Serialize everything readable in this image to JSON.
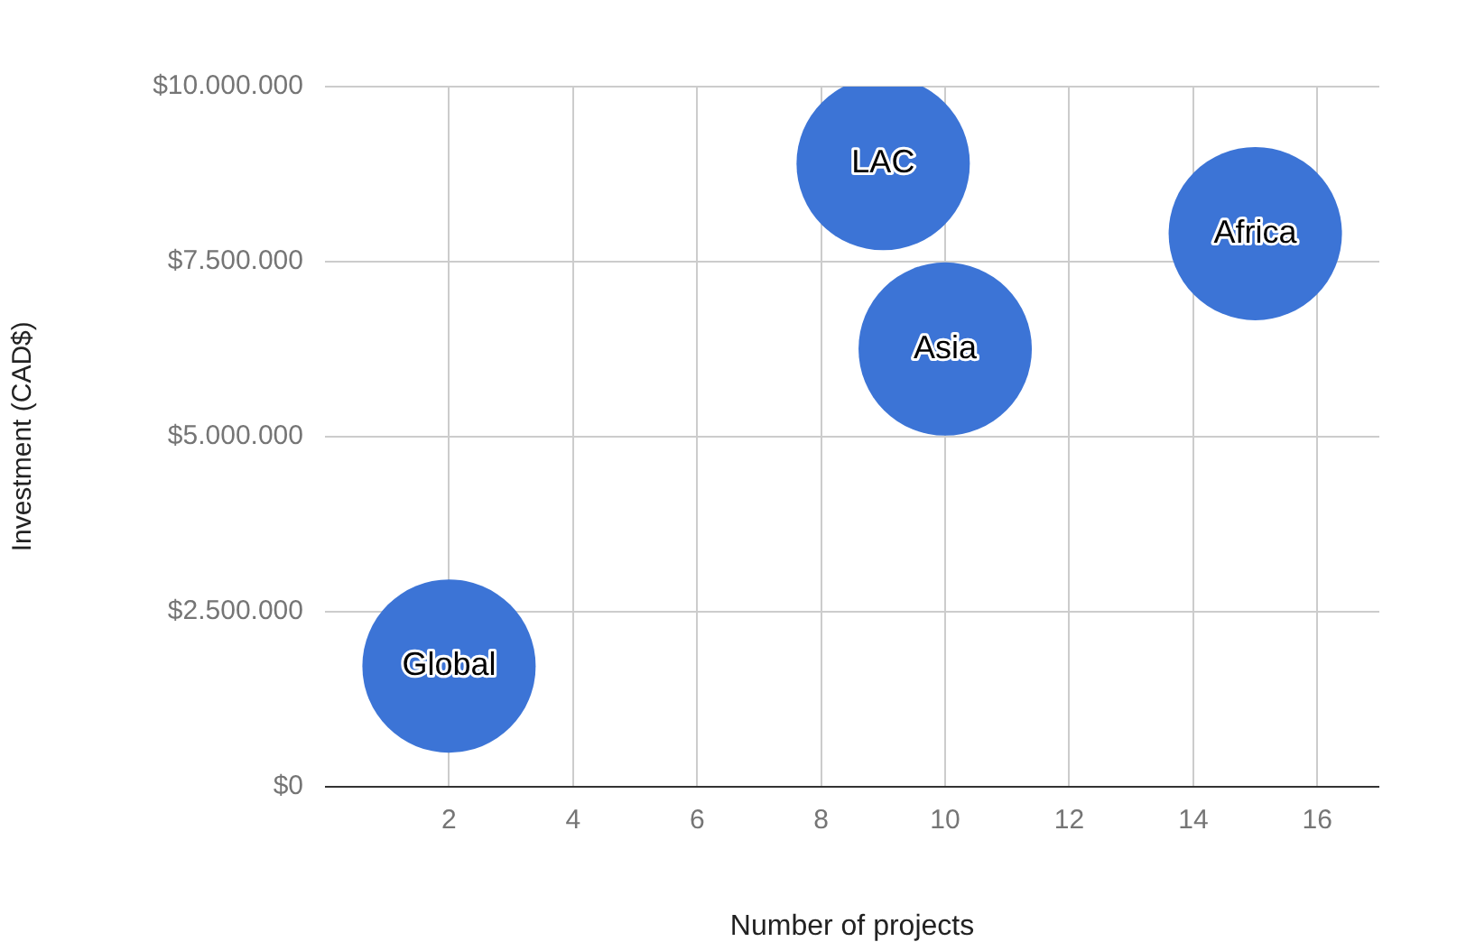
{
  "chart_data": {
    "type": "bubble",
    "xlabel": "Number of projects",
    "ylabel": "Investment (CAD$)",
    "series": [
      {
        "name": "Global",
        "color": "#3c74d6",
        "x": [
          2
        ],
        "values": [
          1720000
        ],
        "sizes": [
          1
        ]
      },
      {
        "name": "LAC",
        "color": "#3c74d6",
        "x": [
          9
        ],
        "values": [
          8900000
        ],
        "sizes": [
          1
        ]
      },
      {
        "name": "Asia",
        "color": "#3c74d6",
        "x": [
          10
        ],
        "values": [
          6250000
        ],
        "sizes": [
          1
        ]
      },
      {
        "name": "Africa",
        "color": "#3c74d6",
        "x": [
          15
        ],
        "values": [
          7900000
        ],
        "sizes": [
          1
        ]
      }
    ],
    "xlim": [
      0,
      17
    ],
    "xticks": [
      2,
      4,
      6,
      8,
      10,
      12,
      14,
      16
    ],
    "ylim": [
      0,
      10000000
    ],
    "yticks": [
      {
        "value": 0,
        "label": "$0"
      },
      {
        "value": 2500000,
        "label": "$2.500.000"
      },
      {
        "value": 5000000,
        "label": "$5.000.000"
      },
      {
        "value": 7500000,
        "label": "$7.500.000"
      },
      {
        "value": 10000000,
        "label": "$10.000.000"
      }
    ],
    "grid": true,
    "legend": false
  }
}
